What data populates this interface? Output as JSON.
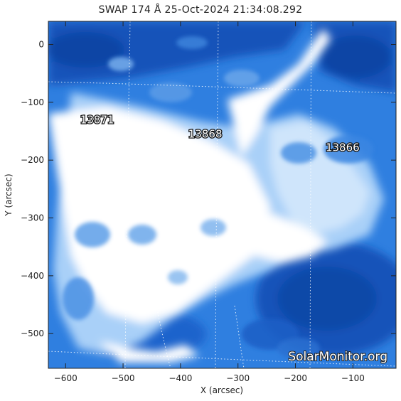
{
  "title": "SWAP 174 Å 25-Oct-2024 21:34:08.292",
  "x_axis": {
    "label": "X (arcsec)",
    "range": [
      -630,
      -25
    ],
    "ticks": [
      -600,
      -500,
      -400,
      -300,
      -200,
      -100
    ]
  },
  "y_axis": {
    "label": "Y (arcsec)",
    "range": [
      -560,
      40
    ],
    "ticks": [
      0,
      -100,
      -200,
      -300,
      -400,
      -500
    ]
  },
  "active_regions": [
    {
      "label": "13871",
      "x": -545,
      "y": -130
    },
    {
      "label": "13868",
      "x": -357,
      "y": -155
    },
    {
      "label": "13866",
      "x": -118,
      "y": -178
    }
  ],
  "credit": "SolarMonitor.org",
  "colors": {
    "deep_blue": "#0a3f9e",
    "mid_blue": "#2f7fe0",
    "light_blue": "#a9d0f8",
    "bright": "#ffffff"
  }
}
